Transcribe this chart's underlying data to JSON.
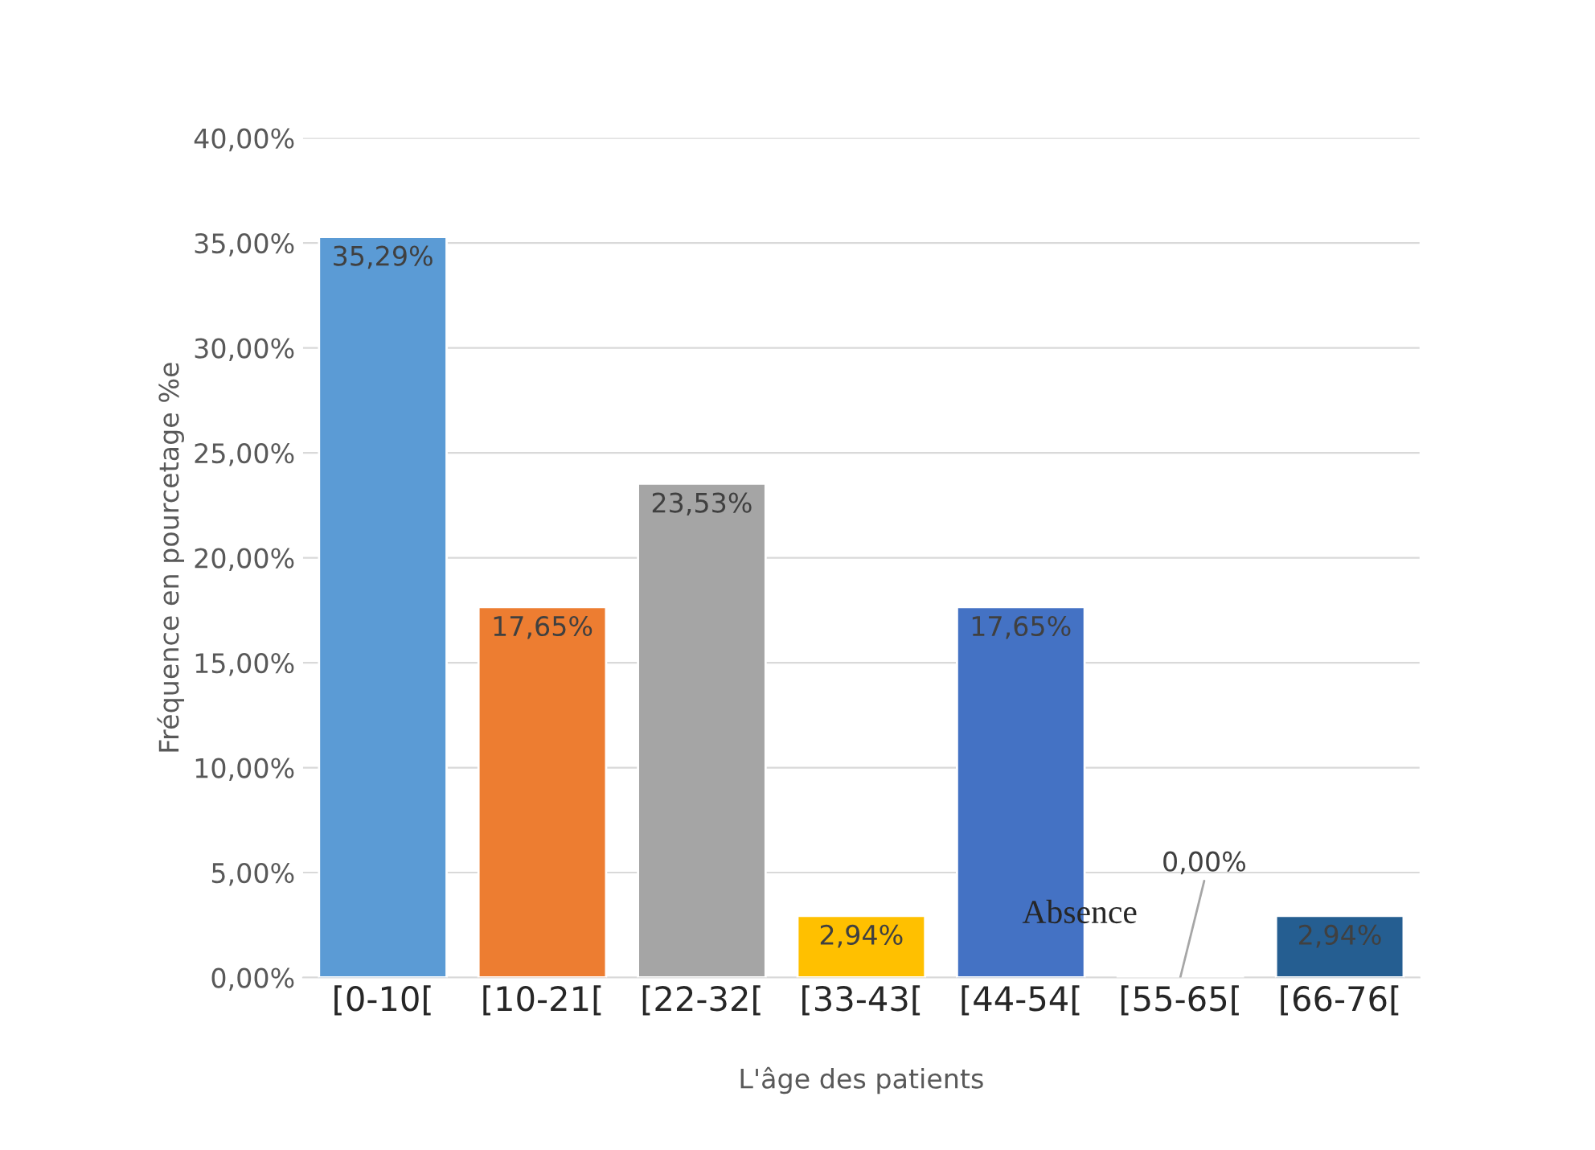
{
  "chart_data": {
    "type": "bar",
    "xlabel": "L'âge des patients",
    "ylabel": "Fréquence en pourcetage %e",
    "categories": [
      "[0-10[",
      "[10-21[",
      "[22-32[",
      "[33-43[",
      "[44-54[",
      "[55-65[",
      "[66-76["
    ],
    "values": [
      35.29,
      17.65,
      23.53,
      2.94,
      17.65,
      0.0,
      2.94
    ],
    "colors": [
      "#5b9bd5",
      "#ed7d31",
      "#a5a5a5",
      "#ffc000",
      "#4472c4",
      null,
      "#255e91"
    ],
    "value_labels": [
      "35,29%",
      "17,65%",
      "23,53%",
      "2,94%",
      "17,65%",
      "0,00%",
      "2,94%"
    ],
    "ylim": [
      0,
      40
    ],
    "yticks": [
      {
        "value": 0,
        "label": "0,00%"
      },
      {
        "value": 5,
        "label": "5,00%"
      },
      {
        "value": 10,
        "label": "10,00%"
      },
      {
        "value": 15,
        "label": "15,00%"
      },
      {
        "value": 20,
        "label": "20,00%"
      },
      {
        "value": 25,
        "label": "25,00%"
      },
      {
        "value": 30,
        "label": "30,00%"
      },
      {
        "value": 35,
        "label": "35,00%"
      },
      {
        "value": 40,
        "label": "40,00%"
      }
    ],
    "grid": "y",
    "legend": false,
    "annotations": [
      {
        "text": "Absence",
        "x": "[55-65[",
        "y": 0
      }
    ]
  }
}
